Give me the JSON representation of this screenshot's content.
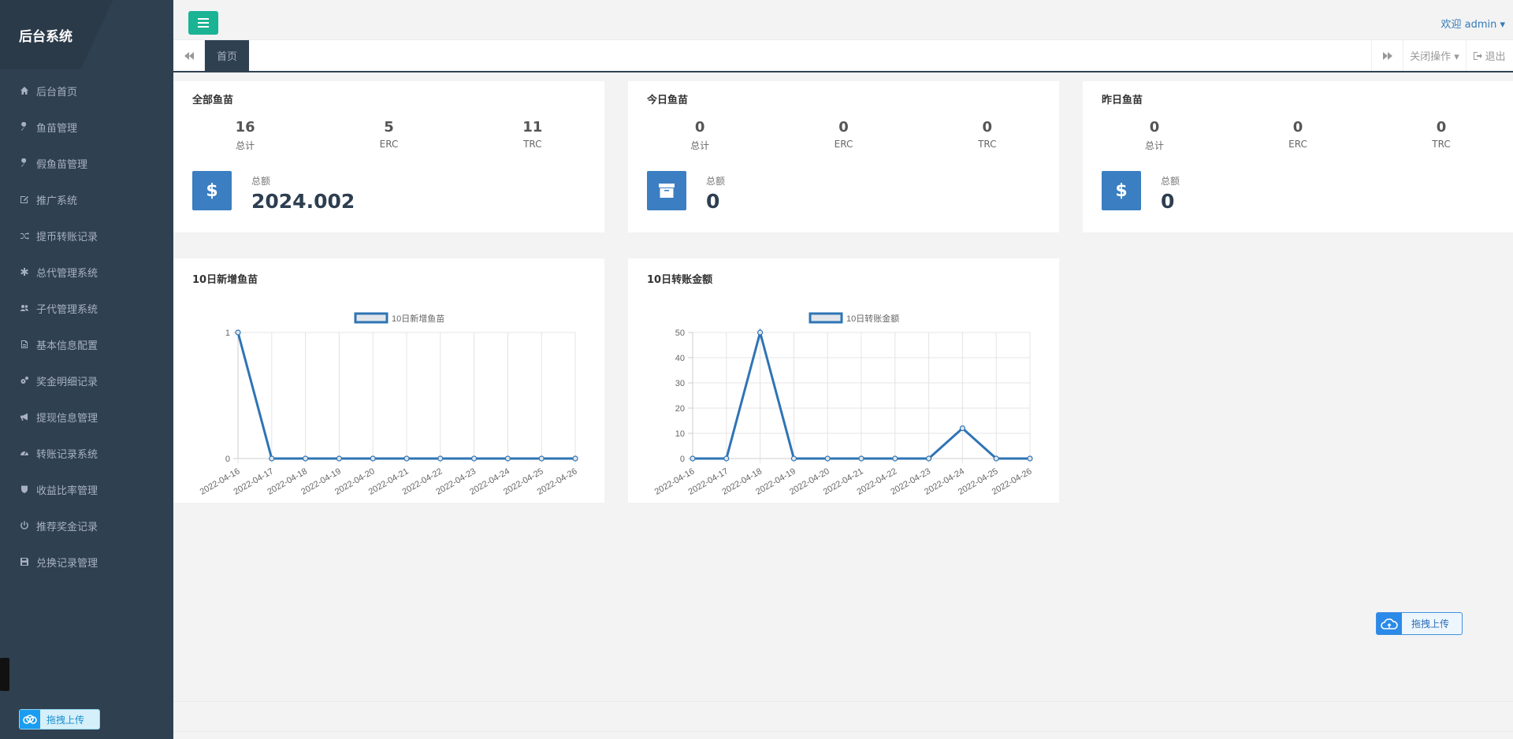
{
  "sidebar": {
    "brand": "后台系统",
    "items": [
      {
        "label": "后台首页",
        "icon": "home-icon"
      },
      {
        "label": "鱼苗管理",
        "icon": "wrench-icon"
      },
      {
        "label": "假鱼苗管理",
        "icon": "wrench-icon"
      },
      {
        "label": "推广系统",
        "icon": "edit-icon"
      },
      {
        "label": "提币转账记录",
        "icon": "random-icon"
      },
      {
        "label": "总代管理系统",
        "icon": "asterisk-icon"
      },
      {
        "label": "子代管理系统",
        "icon": "users-icon"
      },
      {
        "label": "基本信息配置",
        "icon": "file-icon"
      },
      {
        "label": "奖金明细记录",
        "icon": "cogs-icon"
      },
      {
        "label": "提现信息管理",
        "icon": "bullhorn-icon"
      },
      {
        "label": "转账记录系统",
        "icon": "dashboard-icon"
      },
      {
        "label": "收益比率管理",
        "icon": "shield-icon"
      },
      {
        "label": "推荐奖金记录",
        "icon": "power-icon"
      },
      {
        "label": "兑换记录管理",
        "icon": "save-icon"
      }
    ],
    "upload_label": "拖拽上传"
  },
  "header": {
    "welcome": "欢迎 admin ▾"
  },
  "tabs": {
    "home": "首页",
    "close_ops": "关闭操作 ▾",
    "logout": "退出"
  },
  "cards": [
    {
      "title": "全部鱼苗",
      "total": "16",
      "erc": "5",
      "trc": "11",
      "total_label": "总计",
      "erc_label": "ERC",
      "trc_label": "TRC",
      "amount_label": "总额",
      "amount": "2024.002",
      "icon": "dollar-icon"
    },
    {
      "title": "今日鱼苗",
      "total": "0",
      "erc": "0",
      "trc": "0",
      "total_label": "总计",
      "erc_label": "ERC",
      "trc_label": "TRC",
      "amount_label": "总额",
      "amount": "0",
      "icon": "archive-icon"
    },
    {
      "title": "昨日鱼苗",
      "total": "0",
      "erc": "0",
      "trc": "0",
      "total_label": "总计",
      "erc_label": "ERC",
      "trc_label": "TRC",
      "amount_label": "总额",
      "amount": "0",
      "icon": "dollar-icon"
    }
  ],
  "upload_right_label": "拖拽上传",
  "colors": {
    "accent": "#1ab394",
    "sidebar": "#2f4050",
    "line": "#2f74b5",
    "icon_box": "#3b7ec1"
  },
  "chart_data": [
    {
      "type": "line",
      "title": "10日新增鱼苗",
      "legend": "10日新增鱼苗",
      "legend_position": "top-center",
      "x": [
        "2022-04-16",
        "2022-04-17",
        "2022-04-18",
        "2022-04-19",
        "2022-04-20",
        "2022-04-21",
        "2022-04-22",
        "2022-04-23",
        "2022-04-24",
        "2022-04-25",
        "2022-04-26"
      ],
      "series": [
        {
          "name": "10日新增鱼苗",
          "values": [
            1,
            0,
            0,
            0,
            0,
            0,
            0,
            0,
            0,
            0,
            0
          ]
        }
      ],
      "yticks": [
        0,
        1
      ],
      "ylim": [
        0,
        1
      ],
      "grid": true
    },
    {
      "type": "line",
      "title": "10日转账金额",
      "legend": "10日转账金额",
      "legend_position": "top-center",
      "x": [
        "2022-04-16",
        "2022-04-17",
        "2022-04-18",
        "2022-04-19",
        "2022-04-20",
        "2022-04-21",
        "2022-04-22",
        "2022-04-23",
        "2022-04-24",
        "2022-04-25",
        "2022-04-26"
      ],
      "series": [
        {
          "name": "10日转账金额",
          "values": [
            0,
            0,
            50,
            0,
            0,
            0,
            0,
            0,
            12,
            0,
            0
          ]
        }
      ],
      "yticks": [
        0,
        10,
        20,
        30,
        40,
        50
      ],
      "ylim": [
        0,
        50
      ],
      "grid": true
    }
  ]
}
